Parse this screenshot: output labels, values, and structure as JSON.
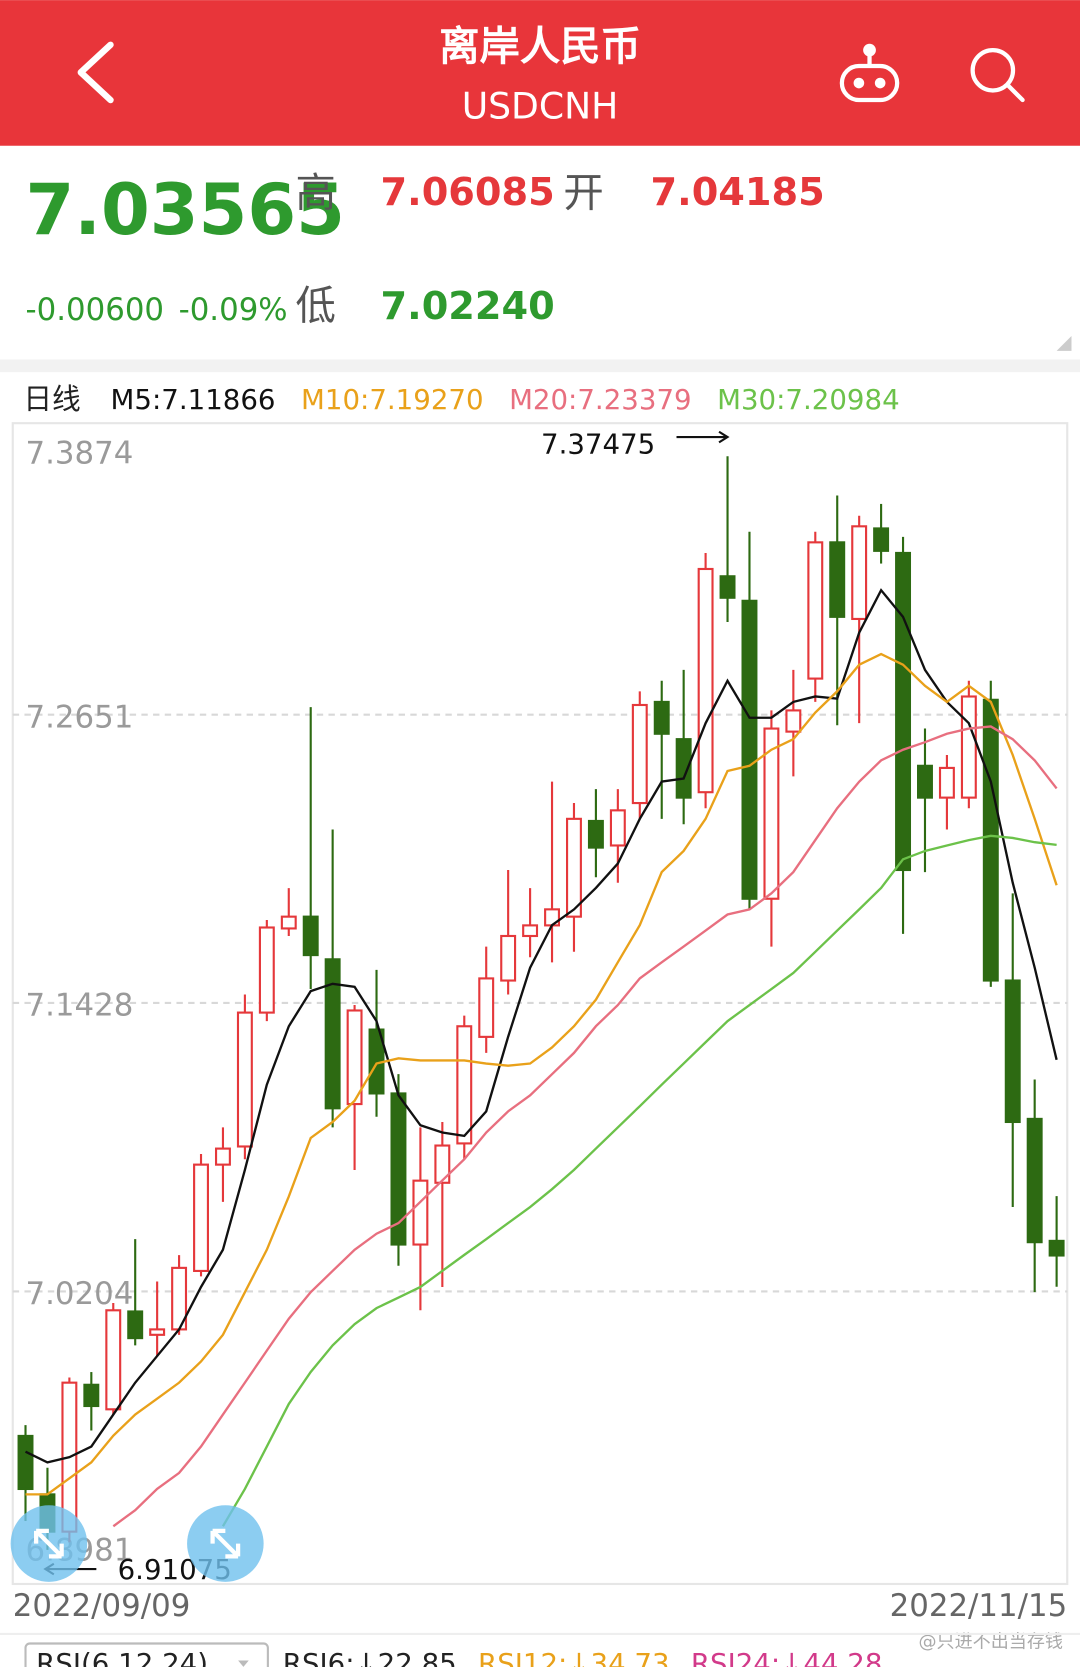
{
  "header": {
    "title": "离岸人民币",
    "subtitle": "USDCNH"
  },
  "quote": {
    "last": "7.03565",
    "change": "-0.00600",
    "change_pct": "-0.09%",
    "high_label": "高",
    "high": "7.06085",
    "open_label": "开",
    "open": "7.04185",
    "low_label": "低",
    "low": "7.02240"
  },
  "chart_data": {
    "type": "candlestick",
    "period": "日线",
    "up_color": "#e5383b",
    "down_color": "#2d6a12",
    "categories": [
      "2022/09/09",
      null,
      null,
      null,
      null,
      null,
      null,
      null,
      null,
      null,
      null,
      null,
      null,
      null,
      null,
      null,
      null,
      null,
      null,
      null,
      null,
      null,
      null,
      null,
      null,
      null,
      null,
      null,
      null,
      null,
      null,
      null,
      null,
      null,
      null,
      null,
      null,
      null,
      null,
      null,
      null,
      null,
      null,
      null,
      null,
      null,
      null,
      "2022/11/15"
    ],
    "open": [
      6.9591,
      6.9343,
      6.9185,
      6.9808,
      6.9704,
      7.0119,
      7.002,
      7.0043,
      7.0291,
      7.0742,
      7.0819,
      7.1387,
      7.1744,
      7.1794,
      7.1613,
      7.0999,
      7.1315,
      7.1044,
      7.0403,
      7.0665,
      7.0832,
      7.1284,
      7.1523,
      7.1712,
      7.1757,
      7.1794,
      7.22,
      7.2096,
      7.2276,
      7.2705,
      7.2547,
      7.2322,
      7.3238,
      7.3134,
      7.187,
      7.2579,
      7.2804,
      7.3382,
      7.3057,
      7.3441,
      7.3337,
      7.2434,
      7.2299,
      7.2299,
      7.2714,
      7.1523,
      7.0936,
      7.04185
    ],
    "high": [
      6.9637,
      6.9456,
      6.9839,
      6.9862,
      7.0155,
      7.0426,
      7.0246,
      7.0358,
      7.0787,
      7.09,
      7.1464,
      7.178,
      7.1915,
      7.2683,
      7.2164,
      7.1419,
      7.1568,
      7.1126,
      7.09,
      7.0923,
      7.1374,
      7.1667,
      7.1992,
      7.1915,
      7.2367,
      7.2276,
      7.2335,
      7.2335,
      7.275,
      7.2795,
      7.2841,
      7.3337,
      7.37475,
      7.3427,
      7.2669,
      7.2841,
      7.3427,
      7.3581,
      7.3495,
      7.3545,
      7.3405,
      7.2592,
      7.248,
      7.2795,
      7.2795,
      7.1893,
      7.1103,
      7.06085
    ],
    "low": [
      6.923,
      6.91075,
      6.914,
      6.9614,
      6.9681,
      6.9975,
      6.993,
      7.002,
      7.0268,
      7.0584,
      7.0765,
      7.1351,
      7.1712,
      7.1487,
      7.09,
      7.0719,
      7.0945,
      7.0313,
      7.0124,
      7.0223,
      7.0765,
      7.1216,
      7.1464,
      7.1622,
      7.16,
      7.1645,
      7.1961,
      7.1938,
      7.2209,
      7.2209,
      7.2186,
      7.2254,
      7.3044,
      7.1825,
      7.1667,
      7.2389,
      7.2705,
      7.2606,
      7.2615,
      7.3292,
      7.1721,
      7.1983,
      7.2164,
      7.2254,
      7.1496,
      7.0562,
      7.0201,
      7.0224
    ],
    "close": [
      6.9366,
      6.9185,
      6.9817,
      6.9718,
      7.0124,
      7.0006,
      7.0043,
      7.0304,
      7.0742,
      7.081,
      7.1387,
      7.1748,
      7.1794,
      7.1631,
      7.0981,
      7.1396,
      7.1044,
      7.0403,
      7.0674,
      7.0823,
      7.1329,
      7.1532,
      7.1712,
      7.1757,
      7.1825,
      7.2209,
      7.2087,
      7.2245,
      7.2692,
      7.257,
      7.2299,
      7.3269,
      7.3147,
      7.187,
      7.2592,
      7.2669,
      7.3382,
      7.3066,
      7.345,
      7.3346,
      7.1992,
      7.2299,
      7.2425,
      7.2728,
      7.1523,
      7.0923,
      7.0413,
      7.03565
    ],
    "series": [
      {
        "name": "M5:7.11866",
        "color": "#111111",
        "values": [
          6.9524,
          6.9479,
          6.9501,
          6.9546,
          6.9682,
          6.9817,
          6.993,
          7.0043,
          7.0223,
          7.0381,
          7.072,
          7.1081,
          7.1329,
          7.1478,
          7.1509,
          7.1496,
          7.1351,
          7.1036,
          7.0909,
          7.0878,
          7.0864,
          7.0968,
          7.1284,
          7.1577,
          7.1758,
          7.1825,
          7.1916,
          7.2019,
          7.2209,
          7.2367,
          7.238,
          7.2615,
          7.2795,
          7.2638,
          7.2638,
          7.2705,
          7.2728,
          7.2719,
          7.2999,
          7.3179,
          7.3066,
          7.2841,
          7.2705,
          7.2615,
          7.2367,
          7.1938,
          7.1577,
          7.11866
        ]
      },
      {
        "name": "M10:7.19270",
        "color": "#e9a11a",
        "values": [
          6.9343,
          6.9343,
          6.9411,
          6.9479,
          6.9592,
          6.9682,
          6.9749,
          6.9817,
          6.9907,
          7.002,
          7.0201,
          7.0381,
          7.0607,
          7.0855,
          7.0923,
          7.1013,
          7.1171,
          7.1193,
          7.1184,
          7.1184,
          7.1184,
          7.1171,
          7.1162,
          7.1171,
          7.1239,
          7.1329,
          7.1442,
          7.16,
          7.1758,
          7.1983,
          7.2073,
          7.2209,
          7.2412,
          7.2434,
          7.2502,
          7.2547,
          7.266,
          7.275,
          7.2863,
          7.2908,
          7.2863,
          7.2773,
          7.2705,
          7.2773,
          7.2705,
          7.248,
          7.2209,
          7.1927
        ]
      },
      {
        "name": "M20:7.23379",
        "color": "#e86f7f",
        "values": [
          null,
          null,
          null,
          null,
          6.9208,
          6.9276,
          6.9366,
          6.9434,
          6.9546,
          6.9682,
          6.9817,
          6.9953,
          7.0088,
          7.0201,
          7.0291,
          7.0381,
          7.0449,
          7.0494,
          7.0584,
          7.0675,
          7.0765,
          7.0878,
          7.0968,
          7.1036,
          7.1126,
          7.1216,
          7.1329,
          7.1419,
          7.1532,
          7.16,
          7.1667,
          7.1735,
          7.1803,
          7.1825,
          7.1893,
          7.1983,
          7.2119,
          7.2254,
          7.2367,
          7.2457,
          7.2502,
          7.2534,
          7.257,
          7.2592,
          7.2601,
          7.2547,
          7.2457,
          7.23379
        ]
      },
      {
        "name": "M30:7.20984",
        "color": "#6cc24a",
        "values": [
          null,
          null,
          null,
          null,
          null,
          null,
          null,
          null,
          null,
          6.9208,
          6.9366,
          6.9546,
          6.9727,
          6.9862,
          6.9975,
          7.0065,
          7.0133,
          7.0178,
          7.0223,
          7.0291,
          7.0359,
          7.0426,
          7.0494,
          7.0562,
          7.0638,
          7.072,
          7.081,
          7.09,
          7.099,
          7.1081,
          7.1171,
          7.1261,
          7.1351,
          7.1419,
          7.1487,
          7.1555,
          7.1645,
          7.1735,
          7.1825,
          7.1916,
          7.2037,
          7.2073,
          7.2096,
          7.2119,
          7.2137,
          7.2128,
          7.211,
          7.20984
        ]
      }
    ],
    "ylim": [
      6.8981,
      7.3874
    ],
    "yticks": [
      7.3874,
      7.2651,
      7.1428,
      7.0204,
      6.8981
    ],
    "grid": true
  },
  "rsi": {
    "selector": "RSI(6,12,24)",
    "items": [
      {
        "text": "RSI6:↓22.85",
        "color": "#222222"
      },
      {
        "text": "RSI12:↓34.73",
        "color": "#e9a11a"
      },
      {
        "text": "RSI24:↓44.28",
        "color": "#d23a8a"
      }
    ]
  },
  "watermark": "@只进不出当存钱"
}
